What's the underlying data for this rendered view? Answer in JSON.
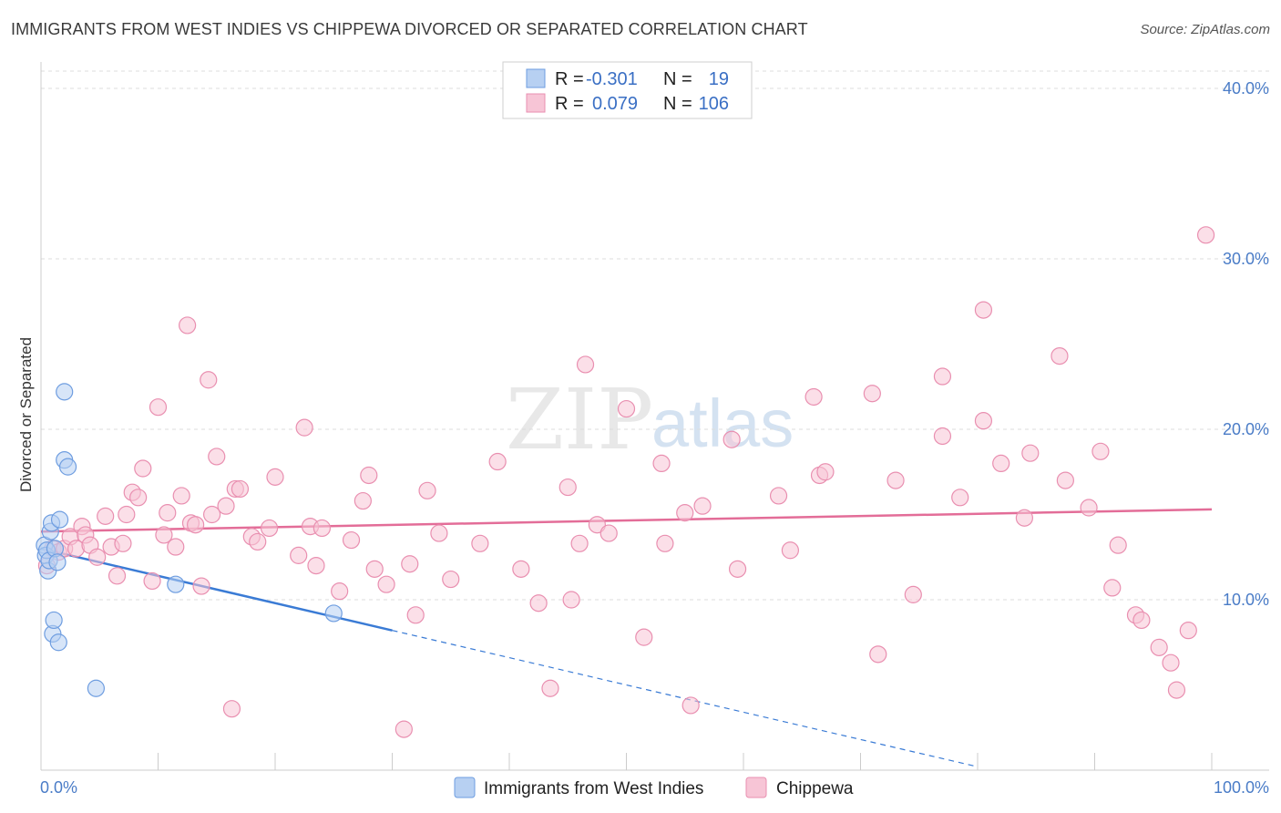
{
  "title": "IMMIGRANTS FROM WEST INDIES VS CHIPPEWA DIVORCED OR SEPARATED CORRELATION CHART",
  "source": "Source: ZipAtlas.com",
  "watermark": {
    "zip": "ZIP",
    "atlas": "atlas"
  },
  "colors": {
    "blue": "#3a7bd5",
    "blue_fill": "#b7d0f2",
    "pink": "#e36d98",
    "pink_fill": "#f7c5d6",
    "tick": "#4a7cc7"
  },
  "legend": {
    "rows": [
      {
        "r_label": "R =",
        "r_value": "-0.301",
        "n_label": "N =",
        "n_value": "19"
      },
      {
        "r_label": "R =",
        "r_value": "0.079",
        "n_label": "N =",
        "n_value": "106"
      }
    ]
  },
  "chart_data": {
    "type": "scatter",
    "title": "IMMIGRANTS FROM WEST INDIES VS CHIPPEWA DIVORCED OR SEPARATED CORRELATION CHART",
    "xlabel": "",
    "ylabel": "Divorced or Separated",
    "xlim": [
      0,
      100
    ],
    "ylim": [
      0,
      42
    ],
    "x_tick_labels": [
      "0.0%",
      "100.0%"
    ],
    "y_ticks": [
      10,
      20,
      30,
      40
    ],
    "y_tick_labels": [
      "10.0%",
      "20.0%",
      "30.0%",
      "40.0%"
    ],
    "grid": true,
    "legend_position": "top-center",
    "series": [
      {
        "name": "Immigrants from West Indies",
        "color": "blue",
        "r": -0.301,
        "n": 19,
        "trend": {
          "x0": 0,
          "y0": 13.0,
          "x1": 30,
          "y1": 8.2,
          "dash_to_x": 80,
          "dash_to_y": 0.2
        },
        "points": [
          [
            0.3,
            13.2
          ],
          [
            0.4,
            12.6
          ],
          [
            0.5,
            12.9
          ],
          [
            0.6,
            11.7
          ],
          [
            0.7,
            12.3
          ],
          [
            0.8,
            14.0
          ],
          [
            0.9,
            14.5
          ],
          [
            1.0,
            8.0
          ],
          [
            1.1,
            8.8
          ],
          [
            1.2,
            13.0
          ],
          [
            1.4,
            12.2
          ],
          [
            1.5,
            7.5
          ],
          [
            1.6,
            14.7
          ],
          [
            2.0,
            22.2
          ],
          [
            2.0,
            18.2
          ],
          [
            2.3,
            17.8
          ],
          [
            4.7,
            4.8
          ],
          [
            11.5,
            10.9
          ],
          [
            25.0,
            9.2
          ]
        ]
      },
      {
        "name": "Chippewa",
        "color": "pink",
        "r": 0.079,
        "n": 106,
        "trend": {
          "x0": 0,
          "y0": 14.0,
          "x1": 100,
          "y1": 15.3
        },
        "points": [
          [
            0.5,
            12.0
          ],
          [
            1.0,
            13.0
          ],
          [
            1.5,
            12.8
          ],
          [
            2.0,
            13.0
          ],
          [
            2.5,
            13.7
          ],
          [
            3.0,
            13.0
          ],
          [
            3.5,
            14.3
          ],
          [
            3.8,
            13.8
          ],
          [
            4.2,
            13.2
          ],
          [
            4.8,
            12.5
          ],
          [
            5.5,
            14.9
          ],
          [
            6.0,
            13.1
          ],
          [
            6.5,
            11.4
          ],
          [
            7.0,
            13.3
          ],
          [
            7.3,
            15.0
          ],
          [
            7.8,
            16.3
          ],
          [
            8.3,
            16.0
          ],
          [
            8.7,
            17.7
          ],
          [
            9.5,
            11.1
          ],
          [
            10.0,
            21.3
          ],
          [
            10.5,
            13.8
          ],
          [
            10.8,
            15.1
          ],
          [
            11.5,
            13.1
          ],
          [
            12.0,
            16.1
          ],
          [
            12.5,
            26.1
          ],
          [
            12.8,
            14.5
          ],
          [
            13.2,
            14.4
          ],
          [
            13.7,
            10.8
          ],
          [
            14.3,
            22.9
          ],
          [
            14.6,
            15.0
          ],
          [
            15.0,
            18.4
          ],
          [
            15.8,
            15.5
          ],
          [
            16.3,
            3.6
          ],
          [
            16.6,
            16.5
          ],
          [
            17.0,
            16.5
          ],
          [
            18.0,
            13.7
          ],
          [
            18.5,
            13.4
          ],
          [
            19.5,
            14.2
          ],
          [
            20.0,
            17.2
          ],
          [
            22.0,
            12.6
          ],
          [
            22.5,
            20.1
          ],
          [
            23.0,
            14.3
          ],
          [
            23.5,
            12.0
          ],
          [
            24.0,
            14.2
          ],
          [
            25.5,
            10.5
          ],
          [
            26.5,
            13.5
          ],
          [
            27.5,
            15.8
          ],
          [
            28.0,
            17.3
          ],
          [
            28.5,
            11.8
          ],
          [
            29.5,
            10.9
          ],
          [
            31.0,
            2.4
          ],
          [
            31.5,
            12.1
          ],
          [
            32.0,
            9.1
          ],
          [
            33.0,
            16.4
          ],
          [
            34.0,
            13.9
          ],
          [
            35.0,
            11.2
          ],
          [
            37.5,
            13.3
          ],
          [
            39.0,
            18.1
          ],
          [
            41.0,
            11.8
          ],
          [
            42.5,
            9.8
          ],
          [
            43.5,
            4.8
          ],
          [
            45.0,
            16.6
          ],
          [
            45.3,
            10.0
          ],
          [
            46.0,
            13.3
          ],
          [
            46.5,
            23.8
          ],
          [
            47.5,
            14.4
          ],
          [
            48.5,
            13.9
          ],
          [
            50.0,
            21.2
          ],
          [
            51.5,
            7.8
          ],
          [
            53.0,
            18.0
          ],
          [
            53.3,
            13.3
          ],
          [
            55.0,
            15.1
          ],
          [
            55.5,
            3.8
          ],
          [
            56.5,
            15.5
          ],
          [
            59.5,
            11.8
          ],
          [
            59.0,
            19.4
          ],
          [
            63.0,
            16.1
          ],
          [
            64.0,
            12.9
          ],
          [
            66.0,
            21.9
          ],
          [
            66.5,
            17.3
          ],
          [
            67.0,
            17.5
          ],
          [
            71.0,
            22.1
          ],
          [
            71.5,
            6.8
          ],
          [
            73.0,
            17.0
          ],
          [
            74.5,
            10.3
          ],
          [
            77.0,
            23.1
          ],
          [
            77.0,
            19.6
          ],
          [
            78.5,
            16.0
          ],
          [
            80.5,
            27.0
          ],
          [
            80.5,
            20.5
          ],
          [
            82.0,
            18.0
          ],
          [
            84.0,
            14.8
          ],
          [
            84.5,
            18.6
          ],
          [
            87.0,
            24.3
          ],
          [
            87.5,
            17.0
          ],
          [
            89.5,
            15.4
          ],
          [
            90.5,
            18.7
          ],
          [
            91.5,
            10.7
          ],
          [
            92.0,
            13.2
          ],
          [
            93.5,
            9.1
          ],
          [
            94.0,
            8.8
          ],
          [
            95.5,
            7.2
          ],
          [
            96.5,
            6.3
          ],
          [
            97.0,
            4.7
          ],
          [
            98.0,
            8.2
          ],
          [
            99.5,
            31.4
          ]
        ]
      }
    ]
  }
}
